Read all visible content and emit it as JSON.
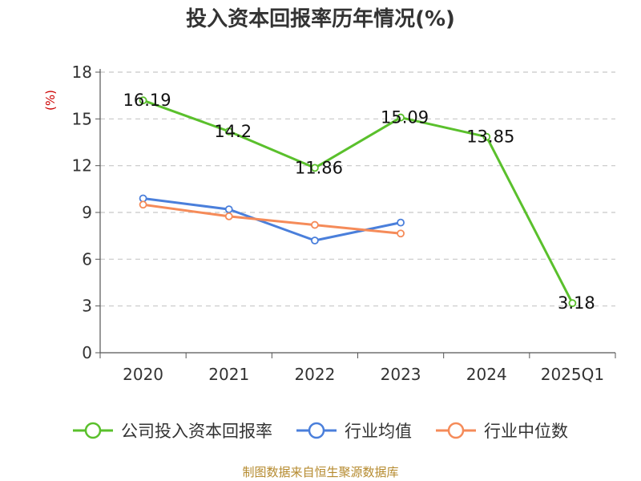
{
  "chart_data": {
    "type": "line",
    "title": "投入资本回报率历年情况(%)",
    "ylabel": "(%)",
    "categories": [
      "2020",
      "2021",
      "2022",
      "2023",
      "2024",
      "2025Q1"
    ],
    "ylim": [
      0,
      18
    ],
    "yticks": [
      0,
      3,
      6,
      9,
      12,
      15,
      18
    ],
    "grid": true,
    "legend_position": "bottom",
    "series": [
      {
        "name": "公司投入资本回报率",
        "color": "#5ac02c",
        "values": [
          16.19,
          14.2,
          11.86,
          15.09,
          13.85,
          3.18
        ],
        "labels": [
          "16.19",
          "14.2",
          "11.86",
          "15.09",
          "13.85",
          "3.18"
        ]
      },
      {
        "name": "行业均值",
        "color": "#4a7fdb",
        "values": [
          9.9,
          9.2,
          7.2,
          8.35,
          null,
          null
        ]
      },
      {
        "name": "行业中位数",
        "color": "#f58b59",
        "values": [
          9.5,
          8.75,
          8.2,
          7.65,
          null,
          null
        ]
      }
    ]
  },
  "source": "制图数据来自恒生聚源数据库"
}
